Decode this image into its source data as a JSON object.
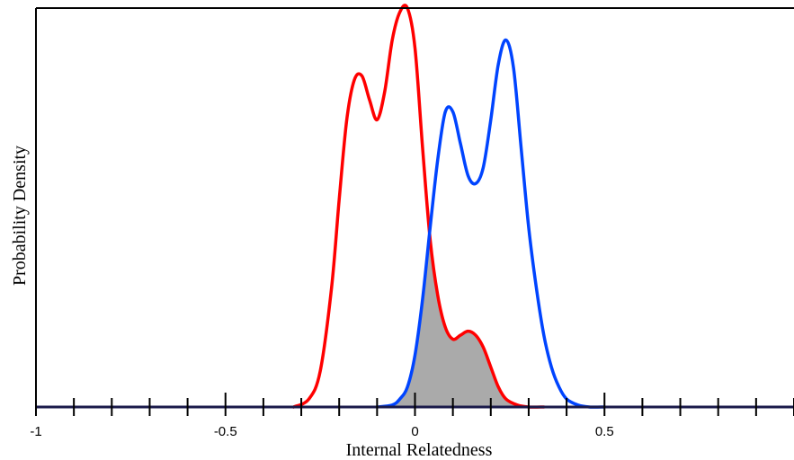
{
  "chart_data": {
    "type": "line",
    "title": "",
    "xlabel": "Internal Relatedness",
    "ylabel": "Probability Density",
    "xlim": [
      -1,
      1
    ],
    "ylim": [
      0,
      1
    ],
    "x_tick_labels": [
      {
        "value": -1,
        "label": "-1"
      },
      {
        "value": -0.5,
        "label": "-0.5"
      },
      {
        "value": 0,
        "label": "0"
      },
      {
        "value": 0.5,
        "label": "0.5"
      }
    ],
    "minor_tick_step": 0.1,
    "grid": false,
    "legend": "none",
    "overlap_fill": {
      "color": "#aaaaaa",
      "description_visible": false
    },
    "series": [
      {
        "color": "#ff0000",
        "x": [
          -0.32,
          -0.28,
          -0.25,
          -0.22,
          -0.2,
          -0.18,
          -0.16,
          -0.14,
          -0.12,
          -0.1,
          -0.08,
          -0.06,
          -0.04,
          -0.02,
          0.0,
          0.02,
          0.04,
          0.06,
          0.08,
          0.1,
          0.12,
          0.14,
          0.16,
          0.18,
          0.2,
          0.22,
          0.24,
          0.27,
          0.3,
          0.34
        ],
        "y": [
          0.0,
          0.02,
          0.09,
          0.3,
          0.52,
          0.72,
          0.82,
          0.83,
          0.77,
          0.72,
          0.79,
          0.92,
          0.99,
          1.0,
          0.9,
          0.65,
          0.42,
          0.28,
          0.2,
          0.17,
          0.18,
          0.19,
          0.18,
          0.15,
          0.1,
          0.05,
          0.02,
          0.005,
          0.0,
          0.0
        ]
      },
      {
        "color": "#0044ff",
        "x": [
          -0.1,
          -0.06,
          -0.04,
          -0.02,
          0.0,
          0.02,
          0.04,
          0.06,
          0.08,
          0.1,
          0.12,
          0.14,
          0.16,
          0.18,
          0.2,
          0.22,
          0.24,
          0.26,
          0.28,
          0.3,
          0.32,
          0.34,
          0.36,
          0.38,
          0.4,
          0.43,
          0.46,
          0.5
        ],
        "y": [
          0.0,
          0.005,
          0.02,
          0.05,
          0.13,
          0.27,
          0.45,
          0.62,
          0.74,
          0.74,
          0.66,
          0.58,
          0.56,
          0.6,
          0.72,
          0.86,
          0.92,
          0.85,
          0.65,
          0.45,
          0.3,
          0.18,
          0.1,
          0.05,
          0.02,
          0.005,
          0.0,
          0.0
        ]
      }
    ]
  }
}
